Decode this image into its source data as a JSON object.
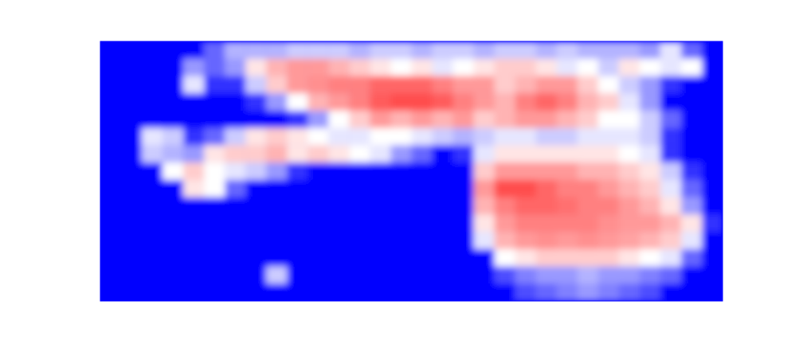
{
  "chart_data": {
    "type": "heatmap",
    "xlim": [
      0,
      30
    ],
    "ylim": [
      0,
      15
    ],
    "zlim": [
      0,
      1
    ],
    "tick_labels": false,
    "values": [
      [
        0,
        0,
        0,
        0,
        0,
        0.2,
        0.35,
        0.35,
        0.35,
        0.4,
        0.4,
        0.4,
        0.35,
        0.4,
        0.4,
        0.35,
        0.4,
        0.4,
        0.35,
        0.4,
        0.4,
        0.35,
        0.4,
        0.35,
        0.35,
        0.35,
        0.3,
        0.45,
        0.2,
        0
      ],
      [
        0,
        0,
        0,
        0,
        0.3,
        0.2,
        0.3,
        0.55,
        0.65,
        0.7,
        0.7,
        0.65,
        0.6,
        0.55,
        0.5,
        0.55,
        0.45,
        0.5,
        0.55,
        0.6,
        0.6,
        0.55,
        0.45,
        0.5,
        0.4,
        0.55,
        0.5,
        0.45,
        0.5,
        0
      ],
      [
        0,
        0,
        0,
        0,
        0.45,
        0.1,
        0.1,
        0.4,
        0.6,
        0.7,
        0.72,
        0.75,
        0.75,
        0.8,
        0.8,
        0.8,
        0.75,
        0.7,
        0.7,
        0.6,
        0.65,
        0.7,
        0.7,
        0.6,
        0.5,
        0.4,
        0.3,
        0.1,
        0,
        0
      ],
      [
        0,
        0,
        0,
        0,
        0,
        0,
        0,
        0.1,
        0.3,
        0.5,
        0.65,
        0.7,
        0.75,
        0.82,
        0.85,
        0.85,
        0.82,
        0.75,
        0.7,
        0.65,
        0.75,
        0.8,
        0.75,
        0.65,
        0.6,
        0.45,
        0.3,
        0,
        0,
        0
      ],
      [
        0,
        0,
        0,
        0,
        0,
        0,
        0,
        0,
        0,
        0.1,
        0.3,
        0.5,
        0.6,
        0.7,
        0.65,
        0.7,
        0.65,
        0.7,
        0.6,
        0.65,
        0.7,
        0.7,
        0.65,
        0.6,
        0.5,
        0.5,
        0.4,
        0.2,
        0,
        0
      ],
      [
        0,
        0,
        0.45,
        0.4,
        0.1,
        0.2,
        0.4,
        0.55,
        0.6,
        0.55,
        0.5,
        0.45,
        0.45,
        0.5,
        0.5,
        0.45,
        0.4,
        0.35,
        0.4,
        0.45,
        0.45,
        0.4,
        0.4,
        0.45,
        0.45,
        0.45,
        0.4,
        0.1,
        0,
        0
      ],
      [
        0,
        0,
        0.4,
        0.35,
        0.3,
        0.55,
        0.6,
        0.6,
        0.65,
        0.55,
        0.6,
        0.55,
        0.5,
        0.45,
        0.3,
        0.2,
        0,
        0.1,
        0.45,
        0.55,
        0.55,
        0.55,
        0.55,
        0.55,
        0.55,
        0.5,
        0.45,
        0.1,
        0,
        0
      ],
      [
        0,
        0,
        0,
        0.5,
        0.6,
        0.5,
        0.45,
        0.4,
        0.3,
        0.1,
        0,
        0,
        0,
        0,
        0,
        0,
        0,
        0,
        0.6,
        0.7,
        0.7,
        0.7,
        0.7,
        0.65,
        0.65,
        0.6,
        0.55,
        0.4,
        0.1,
        0
      ],
      [
        0,
        0,
        0,
        0,
        0.55,
        0.5,
        0.2,
        0,
        0,
        0,
        0,
        0,
        0,
        0,
        0,
        0,
        0,
        0,
        0.7,
        0.85,
        0.85,
        0.8,
        0.75,
        0.75,
        0.7,
        0.65,
        0.6,
        0.45,
        0.2,
        0
      ],
      [
        0,
        0,
        0,
        0,
        0,
        0,
        0,
        0,
        0,
        0,
        0,
        0,
        0,
        0,
        0,
        0,
        0,
        0,
        0.65,
        0.75,
        0.8,
        0.8,
        0.78,
        0.75,
        0.75,
        0.7,
        0.65,
        0.55,
        0.3,
        0
      ],
      [
        0,
        0,
        0,
        0,
        0,
        0,
        0,
        0,
        0,
        0,
        0,
        0,
        0,
        0,
        0,
        0,
        0,
        0,
        0.55,
        0.7,
        0.75,
        0.75,
        0.75,
        0.75,
        0.72,
        0.7,
        0.7,
        0.65,
        0.55,
        0.1
      ],
      [
        0,
        0,
        0,
        0,
        0,
        0,
        0,
        0,
        0,
        0,
        0,
        0,
        0,
        0,
        0,
        0,
        0,
        0,
        0.45,
        0.65,
        0.7,
        0.72,
        0.7,
        0.72,
        0.7,
        0.68,
        0.65,
        0.6,
        0.45,
        0
      ],
      [
        0,
        0,
        0,
        0,
        0,
        0,
        0,
        0,
        0,
        0,
        0,
        0,
        0,
        0,
        0,
        0,
        0,
        0,
        0,
        0.5,
        0.55,
        0.6,
        0.6,
        0.6,
        0.6,
        0.55,
        0.5,
        0.45,
        0.2,
        0
      ],
      [
        0,
        0,
        0,
        0,
        0,
        0,
        0,
        0,
        0.4,
        0,
        0,
        0,
        0,
        0,
        0,
        0,
        0,
        0,
        0,
        0.15,
        0.25,
        0.3,
        0.3,
        0.35,
        0.3,
        0.3,
        0.25,
        0.2,
        0,
        0
      ],
      [
        0,
        0,
        0,
        0,
        0,
        0,
        0,
        0,
        0,
        0,
        0,
        0,
        0,
        0,
        0,
        0,
        0,
        0,
        0,
        0,
        0.15,
        0.2,
        0.25,
        0.3,
        0.25,
        0.2,
        0.15,
        0,
        0,
        0
      ]
    ]
  }
}
